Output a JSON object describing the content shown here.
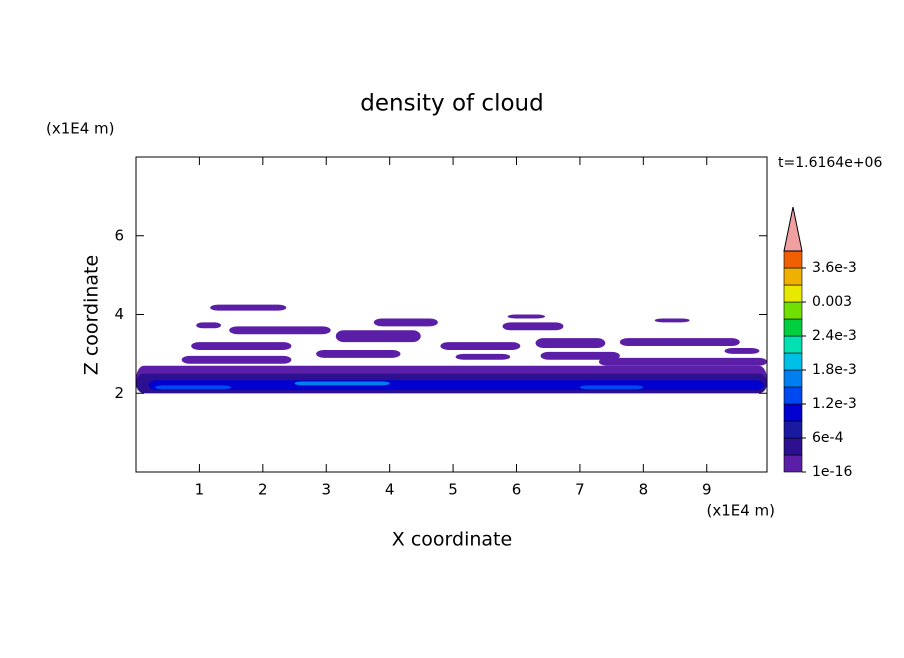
{
  "chart_data": {
    "type": "contour",
    "title": "density of cloud",
    "x_label": "X coordinate",
    "y_label": "Z coordinate",
    "x_unit": "(x1E4 m)",
    "y_unit": "(x1E4 m)",
    "time_label": "t=1.6164e+06",
    "xlim": [
      0,
      9.95
    ],
    "xticks": [
      1,
      2,
      3,
      4,
      5,
      6,
      7,
      8,
      9
    ],
    "ylim": [
      0,
      8
    ],
    "yticks": [
      2,
      4,
      6
    ],
    "patches": [
      {
        "x": [
          0,
          9.95
        ],
        "z": [
          2.0,
          2.7
        ],
        "value": 1e-16
      },
      {
        "x": [
          0,
          9.95
        ],
        "z": [
          2.0,
          2.5
        ],
        "value": 0.0003
      },
      {
        "x": [
          0.2,
          9.9
        ],
        "z": [
          2.08,
          2.33
        ],
        "value": 0.0009
      },
      {
        "x": [
          0.3,
          1.5
        ],
        "z": [
          2.1,
          2.2
        ],
        "value": 0.0012
      },
      {
        "x": [
          2.5,
          4.0
        ],
        "z": [
          2.2,
          2.3
        ],
        "value": 0.0015
      },
      {
        "x": [
          7.0,
          8.0
        ],
        "z": [
          2.1,
          2.2
        ],
        "value": 0.0012
      },
      {
        "x": [
          1.17,
          2.37
        ],
        "z": [
          4.1,
          4.25
        ],
        "value": 1e-16
      },
      {
        "x": [
          0.95,
          1.34
        ],
        "z": [
          3.65,
          3.8
        ],
        "value": 1e-16
      },
      {
        "x": [
          1.47,
          3.07
        ],
        "z": [
          3.5,
          3.7
        ],
        "value": 1e-16
      },
      {
        "x": [
          3.75,
          4.76
        ],
        "z": [
          3.7,
          3.9
        ],
        "value": 1e-16
      },
      {
        "x": [
          5.86,
          6.45
        ],
        "z": [
          3.9,
          4.0
        ],
        "value": 1e-16
      },
      {
        "x": [
          5.78,
          6.74
        ],
        "z": [
          3.6,
          3.8
        ],
        "value": 1e-16
      },
      {
        "x": [
          8.18,
          8.73
        ],
        "z": [
          3.8,
          3.9
        ],
        "value": 1e-16
      },
      {
        "x": [
          3.15,
          4.49
        ],
        "z": [
          3.3,
          3.6
        ],
        "value": 1e-16
      },
      {
        "x": [
          0.87,
          2.45
        ],
        "z": [
          3.1,
          3.3
        ],
        "value": 1e-16
      },
      {
        "x": [
          4.8,
          6.06
        ],
        "z": [
          3.1,
          3.3
        ],
        "value": 1e-16
      },
      {
        "x": [
          6.3,
          7.4
        ],
        "z": [
          3.15,
          3.4
        ],
        "value": 1e-16
      },
      {
        "x": [
          7.63,
          9.52
        ],
        "z": [
          3.2,
          3.4
        ],
        "value": 1e-16
      },
      {
        "x": [
          9.28,
          9.83
        ],
        "z": [
          3.0,
          3.15
        ],
        "value": 1e-16
      },
      {
        "x": [
          0.72,
          2.45
        ],
        "z": [
          2.75,
          2.95
        ],
        "value": 1e-16
      },
      {
        "x": [
          2.84,
          4.17
        ],
        "z": [
          2.9,
          3.1
        ],
        "value": 1e-16
      },
      {
        "x": [
          5.04,
          5.9
        ],
        "z": [
          2.85,
          3.0
        ],
        "value": 1e-16
      },
      {
        "x": [
          6.38,
          7.63
        ],
        "z": [
          2.85,
          3.05
        ],
        "value": 1e-16
      },
      {
        "x": [
          7.3,
          9.95
        ],
        "z": [
          2.7,
          2.9
        ],
        "value": 1e-16
      }
    ],
    "colorbar": {
      "clim": [
        0,
        0.0039
      ],
      "step": 0.0003,
      "colors": [
        "#5a1fa6",
        "#2c1090",
        "#1a1aa0",
        "#0000d0",
        "#0048f0",
        "#0080f0",
        "#00c0e8",
        "#00e0b0",
        "#00d040",
        "#70e000",
        "#e8e800",
        "#f0b000",
        "#f06000"
      ],
      "over_color": "#f0a0a0",
      "ticks": [
        {
          "value": 1e-16,
          "label": "1e-16"
        },
        {
          "value": 0.0006,
          "label": "6e-4"
        },
        {
          "value": 0.0012,
          "label": "1.2e-3"
        },
        {
          "value": 0.0018,
          "label": "1.8e-3"
        },
        {
          "value": 0.0024,
          "label": "2.4e-3"
        },
        0.003,
        {
          "value": 0.0036,
          "label": "3.6e-3"
        }
      ]
    }
  }
}
